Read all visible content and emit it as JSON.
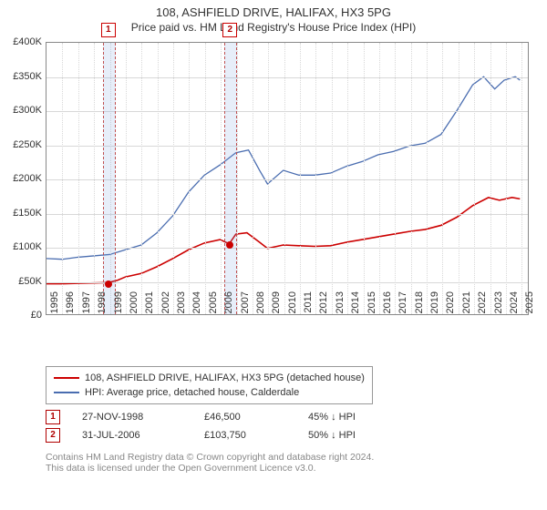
{
  "title_main": "108, ASHFIELD DRIVE, HALIFAX, HX3 5PG",
  "title_sub": "Price paid vs. HM Land Registry's House Price Index (HPI)",
  "chart": {
    "type": "line",
    "background_color": "#ffffff",
    "grid_color": "#d8d8d8",
    "border_color": "#888888",
    "band_color": "rgba(120,160,220,0.18)",
    "band_dash_color": "#c05050",
    "x_years": [
      1995,
      1996,
      1997,
      1998,
      1999,
      2000,
      2001,
      2002,
      2003,
      2004,
      2005,
      2006,
      2007,
      2008,
      2009,
      2010,
      2011,
      2012,
      2013,
      2014,
      2015,
      2016,
      2017,
      2018,
      2019,
      2020,
      2021,
      2022,
      2023,
      2024,
      2025
    ],
    "y_ticks": [
      0,
      50000,
      100000,
      150000,
      200000,
      250000,
      300000,
      350000,
      400000
    ],
    "y_tick_labels": [
      "£0",
      "£50K",
      "£100K",
      "£150K",
      "£200K",
      "£250K",
      "£300K",
      "£350K",
      "£400K"
    ],
    "xlim": [
      1995,
      2025.5
    ],
    "ylim": [
      0,
      400000
    ],
    "series": [
      {
        "name": "price_paid",
        "label": "108, ASHFIELD DRIVE, HALIFAX, HX3 5PG (detached house)",
        "color": "#cc0000",
        "line_width": 1.6,
        "points": [
          [
            1995,
            45000
          ],
          [
            1996,
            45000
          ],
          [
            1997,
            45500
          ],
          [
            1998,
            46000
          ],
          [
            1998.9,
            46500
          ],
          [
            1999.5,
            50000
          ],
          [
            2000,
            55000
          ],
          [
            2001,
            60000
          ],
          [
            2002,
            70000
          ],
          [
            2003,
            82000
          ],
          [
            2004,
            95000
          ],
          [
            2005,
            105000
          ],
          [
            2006,
            110000
          ],
          [
            2006.58,
            103750
          ],
          [
            2007,
            118000
          ],
          [
            2007.7,
            120000
          ],
          [
            2008.5,
            106000
          ],
          [
            2009,
            97000
          ],
          [
            2010,
            102000
          ],
          [
            2011,
            101000
          ],
          [
            2012,
            100000
          ],
          [
            2013,
            101000
          ],
          [
            2014,
            106000
          ],
          [
            2015,
            110000
          ],
          [
            2016,
            114000
          ],
          [
            2017,
            118000
          ],
          [
            2018,
            122000
          ],
          [
            2019,
            125000
          ],
          [
            2020,
            131000
          ],
          [
            2021,
            143000
          ],
          [
            2022,
            160000
          ],
          [
            2023,
            172000
          ],
          [
            2023.7,
            168000
          ],
          [
            2024.5,
            172000
          ],
          [
            2025,
            170000
          ]
        ]
      },
      {
        "name": "hpi",
        "label": "HPI: Average price, detached house, Calderdale",
        "color": "#4a6db0",
        "line_width": 1.3,
        "points": [
          [
            1995,
            82000
          ],
          [
            1996,
            81000
          ],
          [
            1997,
            84000
          ],
          [
            1998,
            86000
          ],
          [
            1999,
            88000
          ],
          [
            2000,
            95000
          ],
          [
            2001,
            102000
          ],
          [
            2002,
            120000
          ],
          [
            2003,
            145000
          ],
          [
            2004,
            180000
          ],
          [
            2005,
            205000
          ],
          [
            2006,
            220000
          ],
          [
            2007,
            238000
          ],
          [
            2007.8,
            242000
          ],
          [
            2008.5,
            212000
          ],
          [
            2009,
            192000
          ],
          [
            2010,
            212000
          ],
          [
            2011,
            205000
          ],
          [
            2012,
            205000
          ],
          [
            2013,
            208000
          ],
          [
            2014,
            218000
          ],
          [
            2015,
            225000
          ],
          [
            2016,
            235000
          ],
          [
            2017,
            240000
          ],
          [
            2018,
            248000
          ],
          [
            2019,
            252000
          ],
          [
            2020,
            265000
          ],
          [
            2021,
            300000
          ],
          [
            2022,
            338000
          ],
          [
            2022.7,
            350000
          ],
          [
            2023.4,
            332000
          ],
          [
            2024,
            345000
          ],
          [
            2024.7,
            350000
          ],
          [
            2025,
            345000
          ]
        ]
      }
    ],
    "sale_bands": [
      {
        "idx": "1",
        "year": 1998.9,
        "price": 46500
      },
      {
        "idx": "2",
        "year": 2006.58,
        "price": 103750
      }
    ],
    "band_halfwidth_years": 0.35,
    "marker_color": "#cc0000",
    "marker_radius": 4
  },
  "legend": {
    "items": [
      {
        "color": "#cc0000",
        "label": "108, ASHFIELD DRIVE, HALIFAX, HX3 5PG (detached house)"
      },
      {
        "color": "#4a6db0",
        "label": "HPI: Average price, detached house, Calderdale"
      }
    ]
  },
  "sales": [
    {
      "idx": "1",
      "date": "27-NOV-1998",
      "price": "£46,500",
      "pct": "45% ↓ HPI"
    },
    {
      "idx": "2",
      "date": "31-JUL-2006",
      "price": "£103,750",
      "pct": "50% ↓ HPI"
    }
  ],
  "footer_line1": "Contains HM Land Registry data © Crown copyright and database right 2024.",
  "footer_line2": "This data is licensed under the Open Government Licence v3.0."
}
